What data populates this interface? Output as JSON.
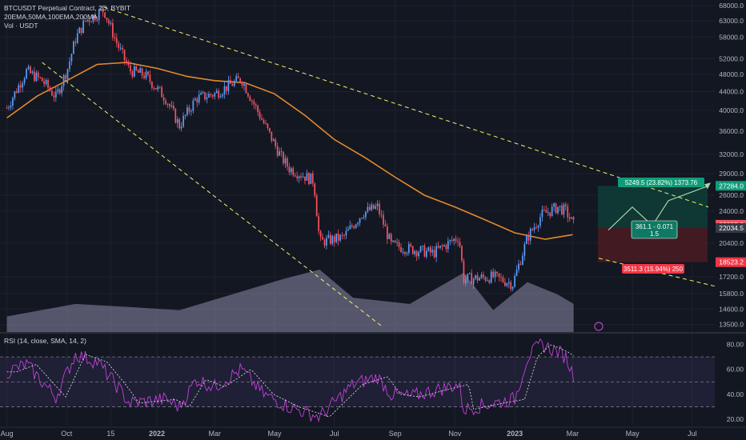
{
  "header": {
    "symbol_line": "BTCUSDT Perpetual Contract, 2D, BYBIT",
    "ma_line": "20EMA,50MA,100EMA,200MA",
    "vol_line": "Vol · USDT",
    "rsi_line": "RSI (14, close, SMA, 14, 2)"
  },
  "colors": {
    "background": "#131722",
    "grid": "#1e222d",
    "candle_up": "#5b9cf6",
    "candle_down": "#f7525f",
    "ma_line": "#e28a2b",
    "trend_lines": "#f5f36a",
    "volume": "#8d8aa8",
    "rsi": "#c042d8",
    "rsi_signal": "#d1d4dc",
    "target_zone": "#0f3d36",
    "stop_zone": "#4a1b22",
    "target_label": "#0f9d78",
    "stop_label": "#f23645"
  },
  "chart_data": {
    "type": "candlestick",
    "timeframe": "2D",
    "price_scale": {
      "ticks": [
        "68000.0",
        "63000.0",
        "58000.0",
        "52000.0",
        "48000.0",
        "44000.0",
        "40000.0",
        "36000.0",
        "32000.0",
        "29000.0",
        "26000.0",
        "24000.0",
        "20400.0",
        "17200.0",
        "15800.0",
        "14600.0",
        "13500.0"
      ],
      "ylim": [
        13000,
        70000
      ],
      "scale": "log"
    },
    "time_axis": {
      "ticks": [
        "Aug",
        "Oct",
        "15",
        "2022",
        "Mar",
        "May",
        "Jul",
        "Sep",
        "Nov",
        "2023",
        "Mar",
        "May",
        "Jul"
      ]
    },
    "price_tags": [
      {
        "value": "27284.0",
        "color": "#0f9d78"
      },
      {
        "value": "22395.6",
        "color": "#f7525f"
      },
      {
        "value": "22034.5",
        "color": "#363a45"
      },
      {
        "value": "18523.2",
        "color": "#f23645"
      }
    ],
    "candles_approx": [
      [
        "2021-08-01",
        39800,
        41200,
        38800,
        40500
      ],
      [
        "2021-08-21",
        47500,
        49800,
        46800,
        48800
      ],
      [
        "2021-09-06",
        51500,
        52900,
        43000,
        46500
      ],
      [
        "2021-09-20",
        43200,
        44500,
        40200,
        42800
      ],
      [
        "2021-10-02",
        47000,
        49800,
        46500,
        49500
      ],
      [
        "2021-10-10",
        55000,
        58000,
        54000,
        57500
      ],
      [
        "2021-10-20",
        62000,
        67000,
        61000,
        63000
      ],
      [
        "2021-11-08",
        63500,
        69000,
        62500,
        66500
      ],
      [
        "2021-11-20",
        58000,
        60000,
        54000,
        57000
      ],
      [
        "2021-12-04",
        53000,
        54000,
        42000,
        49000
      ],
      [
        "2021-12-20",
        47500,
        50000,
        46000,
        47800
      ],
      [
        "2022-01-10",
        42000,
        43000,
        39500,
        42500
      ],
      [
        "2022-01-24",
        36500,
        38500,
        33000,
        37000
      ],
      [
        "2022-02-10",
        43000,
        45500,
        41500,
        42500
      ],
      [
        "2022-03-01",
        39000,
        45000,
        38500,
        43500
      ],
      [
        "2022-03-28",
        46500,
        48200,
        45800,
        47000
      ],
      [
        "2022-04-12",
        40000,
        41500,
        39000,
        40500
      ],
      [
        "2022-05-08",
        33000,
        34500,
        31000,
        31500
      ],
      [
        "2022-05-16",
        29500,
        30500,
        28500,
        29800
      ],
      [
        "2022-06-10",
        29000,
        30500,
        27500,
        28000
      ],
      [
        "2022-06-16",
        22000,
        23000,
        17600,
        20500
      ],
      [
        "2022-07-10",
        20200,
        21500,
        18900,
        21000
      ],
      [
        "2022-07-30",
        23500,
        24500,
        22800,
        23800
      ],
      [
        "2022-08-14",
        24000,
        25200,
        23500,
        24500
      ],
      [
        "2022-08-28",
        20000,
        20800,
        19500,
        20200
      ],
      [
        "2022-09-16",
        19600,
        20500,
        18500,
        19800
      ],
      [
        "2022-10-10",
        19000,
        19800,
        18800,
        19400
      ],
      [
        "2022-11-05",
        20800,
        21400,
        20400,
        21100
      ],
      [
        "2022-11-10",
        16500,
        18000,
        15500,
        17000
      ],
      [
        "2022-12-10",
        17000,
        17400,
        16800,
        17200
      ],
      [
        "2022-12-30",
        16500,
        16800,
        16400,
        16600
      ],
      [
        "2023-01-14",
        19500,
        21500,
        19200,
        21000
      ],
      [
        "2023-01-28",
        23000,
        23800,
        22500,
        23500
      ],
      [
        "2023-02-14",
        22000,
        24800,
        21600,
        24500
      ],
      [
        "2023-02-22",
        24800,
        25200,
        23500,
        24000
      ],
      [
        "2023-03-02",
        23500,
        23800,
        22100,
        22400
      ]
    ],
    "ma_series_approx": [
      [
        "2021-08-01",
        38500
      ],
      [
        "2021-09-01",
        43000
      ],
      [
        "2021-10-01",
        46500
      ],
      [
        "2021-11-01",
        50500
      ],
      [
        "2021-12-01",
        51000
      ],
      [
        "2022-01-01",
        49500
      ],
      [
        "2022-02-01",
        47500
      ],
      [
        "2022-03-01",
        46500
      ],
      [
        "2022-04-01",
        46000
      ],
      [
        "2022-05-01",
        43500
      ],
      [
        "2022-06-01",
        39000
      ],
      [
        "2022-07-01",
        34500
      ],
      [
        "2022-08-01",
        31500
      ],
      [
        "2022-09-01",
        28500
      ],
      [
        "2022-10-01",
        26000
      ],
      [
        "2022-11-01",
        24500
      ],
      [
        "2022-12-01",
        23000
      ],
      [
        "2023-01-01",
        21500
      ],
      [
        "2023-02-01",
        20800
      ],
      [
        "2023-03-01",
        21300
      ]
    ],
    "position_tool": {
      "target_label": "5249.5 (23.82%) 1373.76",
      "stop_label": "3511.3 (15.94%) 250",
      "ratio_label_line1": "361.1 - 0.071",
      "ratio_label_line2": "1.5"
    },
    "rsi_pane": {
      "ticks": [
        "80.00",
        "60.00",
        "40.00",
        "20.00"
      ],
      "ylim": [
        15,
        88
      ],
      "bands": [
        30,
        50,
        70
      ],
      "rsi_approx": [
        [
          "2021-08-01",
          58
        ],
        [
          "2021-08-21",
          64
        ],
        [
          "2021-09-06",
          50
        ],
        [
          "2021-09-20",
          38
        ],
        [
          "2021-10-10",
          72
        ],
        [
          "2021-11-01",
          66
        ],
        [
          "2021-11-20",
          48
        ],
        [
          "2021-12-04",
          33
        ],
        [
          "2022-01-10",
          36
        ],
        [
          "2022-01-24",
          30
        ],
        [
          "2022-02-10",
          52
        ],
        [
          "2022-03-01",
          46
        ],
        [
          "2022-03-28",
          60
        ],
        [
          "2022-04-20",
          40
        ],
        [
          "2022-05-16",
          30
        ],
        [
          "2022-06-16",
          22
        ],
        [
          "2022-07-20",
          48
        ],
        [
          "2022-08-14",
          54
        ],
        [
          "2022-08-28",
          40
        ],
        [
          "2022-09-16",
          38
        ],
        [
          "2022-10-10",
          43
        ],
        [
          "2022-11-05",
          48
        ],
        [
          "2022-11-10",
          28
        ],
        [
          "2022-12-10",
          33
        ],
        [
          "2023-01-01",
          36
        ],
        [
          "2023-01-14",
          70
        ],
        [
          "2023-01-28",
          80
        ],
        [
          "2023-02-14",
          74
        ],
        [
          "2023-02-22",
          70
        ],
        [
          "2023-03-02",
          55
        ]
      ]
    },
    "volume_approx": [
      [
        "2021-08-01",
        0.25
      ],
      [
        "2021-10-10",
        0.45
      ],
      [
        "2021-12-04",
        0.4
      ],
      [
        "2022-01-24",
        0.35
      ],
      [
        "2022-05-10",
        0.85
      ],
      [
        "2022-06-16",
        1.0
      ],
      [
        "2022-07-20",
        0.55
      ],
      [
        "2022-09-16",
        0.45
      ],
      [
        "2022-11-10",
        0.95
      ],
      [
        "2022-12-10",
        0.35
      ],
      [
        "2023-01-14",
        0.8
      ],
      [
        "2023-02-14",
        0.6
      ],
      [
        "2023-03-02",
        0.45
      ]
    ]
  }
}
